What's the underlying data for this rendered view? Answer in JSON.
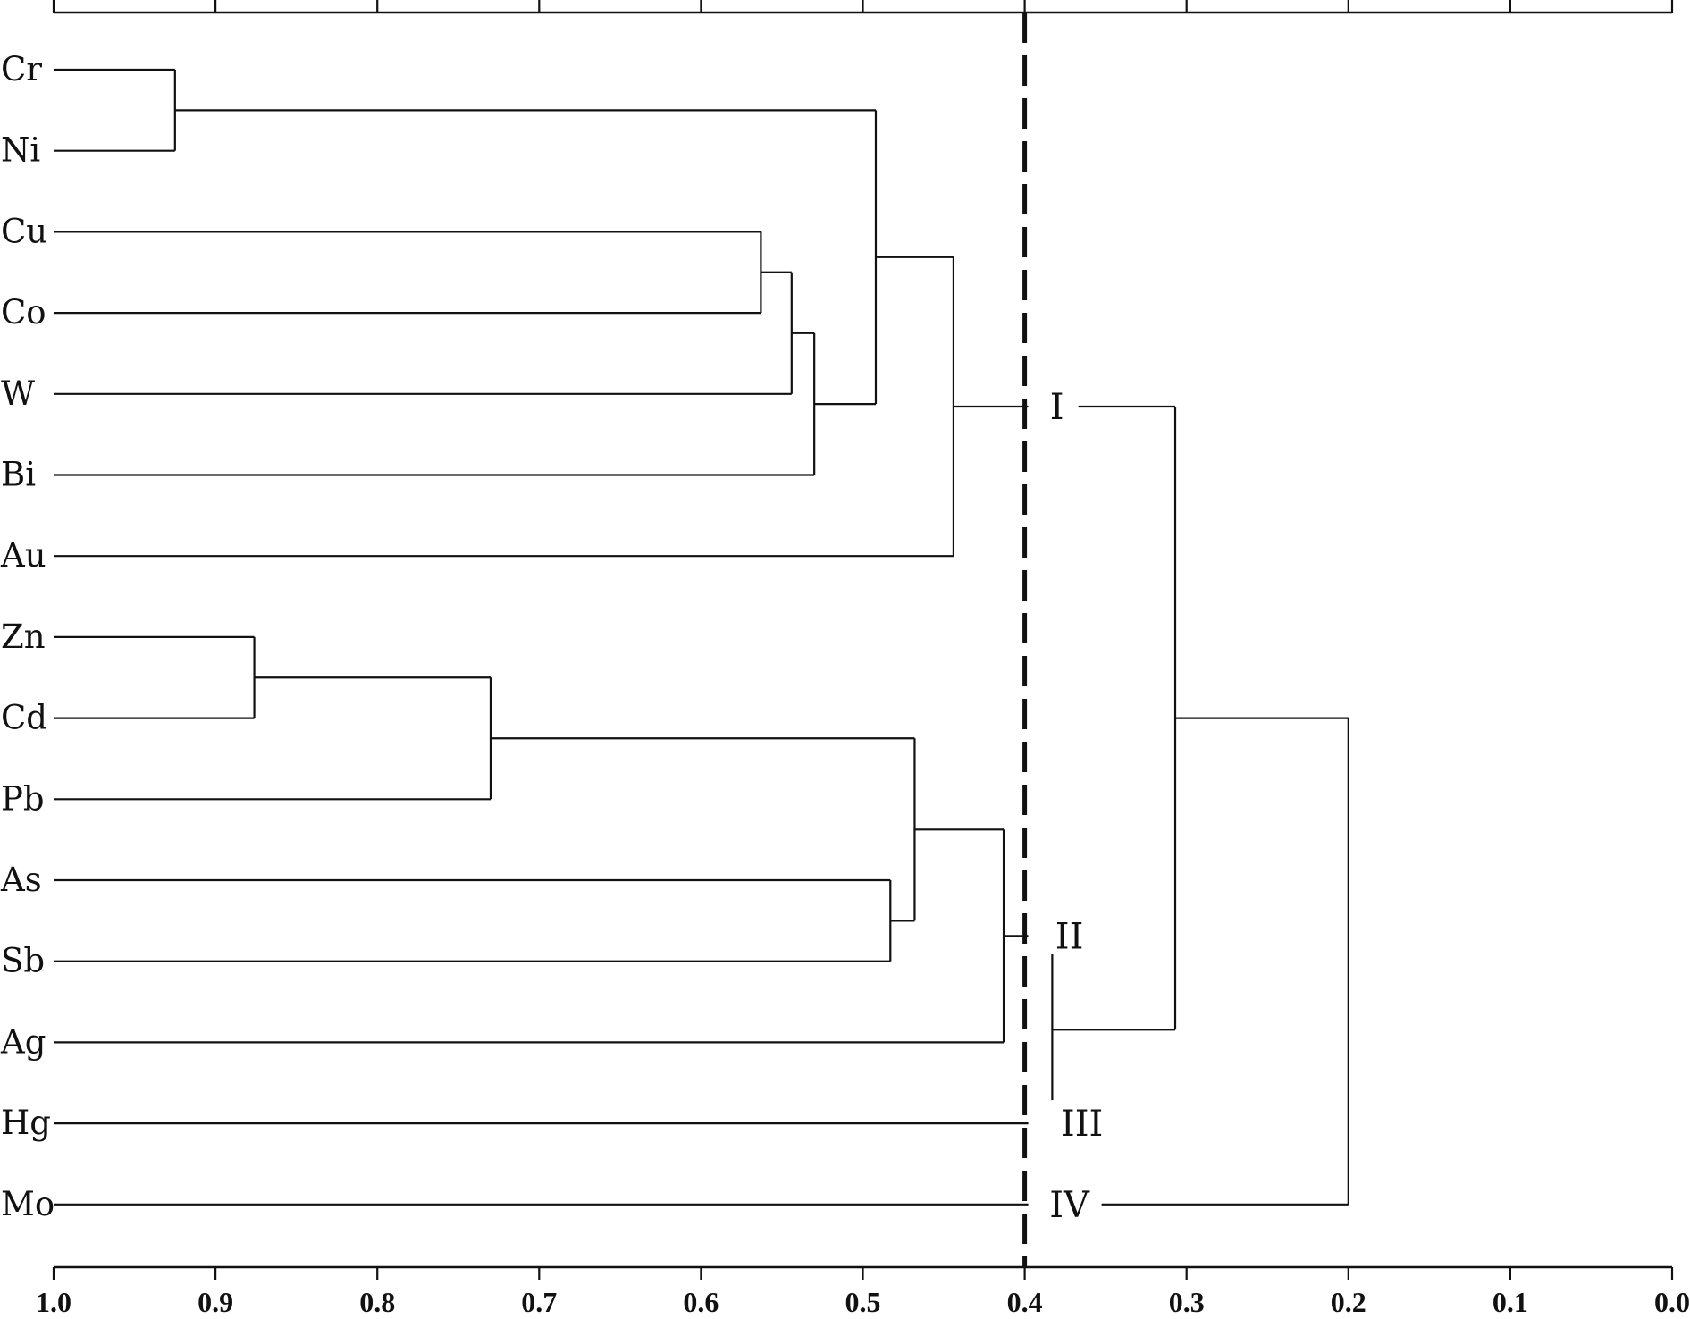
{
  "chart_data": {
    "type": "dendrogram",
    "x_axis": {
      "ticks": [
        "1.0",
        "0.9",
        "0.8",
        "0.7",
        "0.6",
        "0.5",
        "0.4",
        "0.3",
        "0.2",
        "0.1",
        "0.0"
      ],
      "range": [
        1.0,
        0.0
      ],
      "reversed": true,
      "axis_at_top": true,
      "axis_at_bottom": true
    },
    "leaves": [
      "Cr",
      "Ni",
      "Cu",
      "Co",
      "W",
      "Bi",
      "Au",
      "Zn",
      "Cd",
      "Pb",
      "As",
      "Sb",
      "Ag",
      "Hg",
      "Mo"
    ],
    "merges": [
      {
        "id": "m1",
        "children": [
          "Cr",
          "Ni"
        ],
        "similarity": 0.925
      },
      {
        "id": "m2",
        "children": [
          "Cu",
          "Co"
        ],
        "similarity": 0.563
      },
      {
        "id": "m3",
        "children": [
          "m2",
          "W"
        ],
        "similarity": 0.544
      },
      {
        "id": "m4",
        "children": [
          "m3",
          "Bi"
        ],
        "similarity": 0.53
      },
      {
        "id": "m5",
        "children": [
          "m1",
          "m4"
        ],
        "similarity": 0.492
      },
      {
        "id": "m6",
        "children": [
          "m5",
          "Au"
        ],
        "similarity": 0.444
      },
      {
        "id": "m7",
        "children": [
          "Zn",
          "Cd"
        ],
        "similarity": 0.876
      },
      {
        "id": "m8",
        "children": [
          "m7",
          "Pb"
        ],
        "similarity": 0.73
      },
      {
        "id": "m9",
        "children": [
          "As",
          "Sb"
        ],
        "similarity": 0.483
      },
      {
        "id": "m10",
        "children": [
          "m8",
          "m9"
        ],
        "similarity": 0.468
      },
      {
        "id": "m11",
        "children": [
          "m10",
          "Ag"
        ],
        "similarity": 0.413
      },
      {
        "id": "m12",
        "children": [
          "m11",
          "Hg"
        ],
        "similarity": 0.383
      },
      {
        "id": "m13",
        "children": [
          "m6",
          "m12"
        ],
        "similarity": 0.307
      },
      {
        "id": "m14",
        "children": [
          "m13",
          "Mo"
        ],
        "similarity": 0.2
      }
    ],
    "threshold": {
      "value": 0.4,
      "style": "dashed"
    },
    "clusters": [
      {
        "label": "I",
        "members": [
          "Cr",
          "Ni",
          "Cu",
          "Co",
          "W",
          "Bi",
          "Au"
        ]
      },
      {
        "label": "II",
        "members": [
          "Zn",
          "Cd",
          "Pb",
          "As",
          "Sb",
          "Ag"
        ]
      },
      {
        "label": "III",
        "members": [
          "Hg"
        ]
      },
      {
        "label": "IV",
        "members": [
          "Mo"
        ]
      }
    ],
    "colors": {
      "lines": "#111111",
      "background": "#ffffff"
    }
  }
}
